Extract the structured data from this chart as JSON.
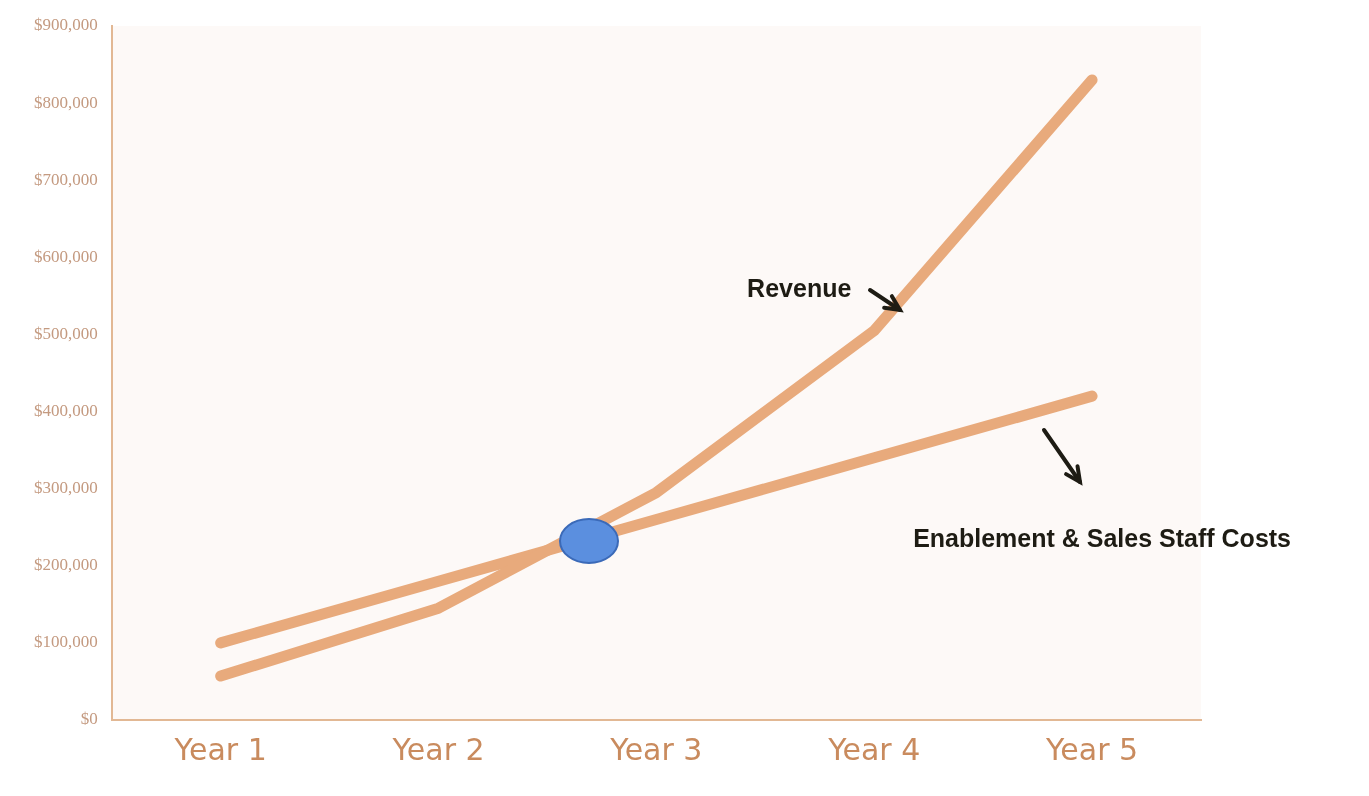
{
  "chart_data": {
    "type": "line",
    "categories": [
      "Year 1",
      "Year 2",
      "Year 3",
      "Year 4",
      "Year 5"
    ],
    "series": [
      {
        "name": "Revenue",
        "color": "#e8aa7c",
        "values": [
          57000,
          145000,
          295000,
          505000,
          830000
        ]
      },
      {
        "name": "Enablement & Sales Staff Costs",
        "color": "#e8aa7c",
        "values": [
          100000,
          180000,
          260000,
          340000,
          420000
        ]
      }
    ],
    "ylim": [
      0,
      900000
    ],
    "yticks": [
      {
        "value": 0,
        "label": "$0"
      },
      {
        "value": 100000,
        "label": "$100,000"
      },
      {
        "value": 200000,
        "label": "$200,000"
      },
      {
        "value": 300000,
        "label": "$300,000"
      },
      {
        "value": 400000,
        "label": "$400,000"
      },
      {
        "value": 500000,
        "label": "$500,000"
      },
      {
        "value": 600000,
        "label": "$600,000"
      },
      {
        "value": 700000,
        "label": "$700,000"
      },
      {
        "value": 800000,
        "label": "$800,000"
      },
      {
        "value": 900000,
        "label": "$900,000"
      }
    ],
    "grid": false,
    "legend": false,
    "marker": "none",
    "line_style": "solid"
  }
}
